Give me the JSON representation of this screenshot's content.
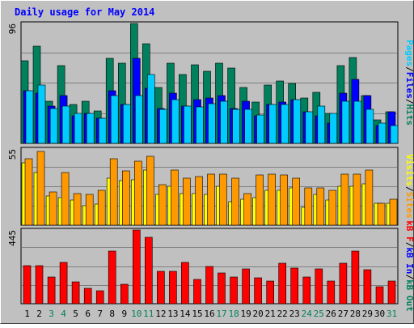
{
  "chart_data": {
    "type": "bar",
    "title": "Daily usage for May 2014",
    "categories": [
      "1",
      "2",
      "3",
      "4",
      "5",
      "6",
      "7",
      "8",
      "9",
      "10",
      "11",
      "12",
      "13",
      "14",
      "15",
      "16",
      "17",
      "18",
      "19",
      "20",
      "21",
      "22",
      "23",
      "24",
      "25",
      "26",
      "27",
      "28",
      "29",
      "30",
      "31"
    ],
    "weekend_days": [
      "3",
      "4",
      "10",
      "11",
      "17",
      "18",
      "24",
      "25",
      "31"
    ],
    "panels": [
      {
        "id": "hits_panel",
        "ymax_label": "96",
        "ylim": [
          0,
          96
        ],
        "series": [
          {
            "name": "Hits",
            "color": "#00805c",
            "values": [
              66,
              78,
              34,
              62,
              31,
              34,
              26,
              68,
              64,
              96,
              80,
              45,
              64,
              55,
              63,
              58,
              64,
              60,
              45,
              33,
              47,
              50,
              48,
              36,
              41,
              24,
              62,
              69,
              38,
              19,
              25
            ]
          },
          {
            "name": "Files",
            "color": "#0000ff",
            "values": [
              42,
              40,
              30,
              38,
              22,
              24,
              20,
              42,
              31,
              68,
              44,
              28,
              40,
              30,
              35,
              36,
              38,
              28,
              34,
              22,
              31,
              33,
              35,
              25,
              22,
              16,
              40,
              51,
              38,
              14,
              25
            ]
          },
          {
            "name": "Pages",
            "color": "#00ccff",
            "values": [
              42,
              47,
              28,
              30,
              24,
              24,
              20,
              38,
              31,
              38,
              55,
              27,
              35,
              30,
              29,
              32,
              34,
              27,
              27,
              23,
              31,
              31,
              35,
              25,
              30,
              24,
              34,
              34,
              27,
              16,
              14
            ]
          }
        ]
      },
      {
        "id": "sites_panel",
        "ymax_label": "55",
        "ylim": [
          0,
          55
        ],
        "series": [
          {
            "name": "Visits",
            "color": "#ffff00",
            "values": [
              45,
              38,
              21,
              20,
              18,
              14,
              15,
              34,
              32,
              33,
              40,
              22,
              28,
              23,
              23,
              22,
              28,
              17,
              19,
              20,
              25,
              25,
              27,
              13,
              22,
              18,
              28,
              28,
              30,
              16,
              16
            ]
          },
          {
            "name": "Sites",
            "color": "#ff9900",
            "values": [
              48,
              53,
              24,
              38,
              23,
              22,
              25,
              48,
              39,
              46,
              50,
              29,
              40,
              34,
              35,
              37,
              37,
              34,
              23,
              36,
              37,
              36,
              34,
              27,
              27,
              25,
              37,
              37,
              40,
              16,
              19
            ]
          }
        ]
      },
      {
        "id": "kbytes_panel",
        "ymax_label": "445",
        "ylim": [
          0,
          445
        ],
        "series": [
          {
            "name": "kB F",
            "color": "#ff0000",
            "values": [
              230,
              230,
              160,
              248,
              130,
              95,
              80,
              318,
              115,
              445,
              400,
              195,
              195,
              250,
              145,
              225,
              185,
              160,
              210,
              155,
              135,
              245,
              215,
              160,
              210,
              135,
              245,
              320,
              205,
              105,
              135
            ]
          }
        ]
      }
    ],
    "legend": [
      {
        "label": "Pages",
        "color": "#00ccff"
      },
      {
        "label": "Files",
        "color": "#0000ff"
      },
      {
        "label": "Hits",
        "color": "#00805c"
      },
      {
        "label": "Visits",
        "color": "#ffff00"
      },
      {
        "label": "Sites",
        "color": "#ff9900"
      },
      {
        "label": "kB F",
        "color": "#ff0000"
      },
      {
        "label": "kB In",
        "color": "#0000ff"
      },
      {
        "label": "kB Out",
        "color": "#00805c"
      }
    ],
    "colors": {
      "background": "#c0c0c0",
      "plot_background": "#c0c0c0",
      "title": "#0000ff",
      "gridline": "#808080",
      "weekday_label": "#000000",
      "weekend_label": "#00805c",
      "separator": "#000000"
    },
    "grid": true
  }
}
